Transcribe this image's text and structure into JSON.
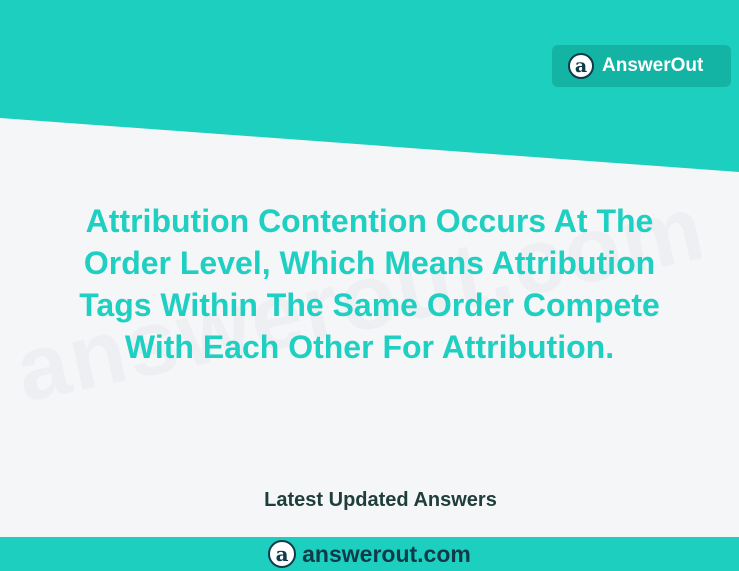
{
  "brand": {
    "logo_glyph": "a",
    "name": "AnswerOut"
  },
  "question": {
    "lines": [
      "Attribution Contention Occurs At The",
      "Order Level, Which Means Attribution",
      "Tags Within The Same Order Compete",
      "With Each Other For Attribution."
    ]
  },
  "footer": {
    "label": "Latest Updated Answers",
    "logo_glyph": "a",
    "site": "answerout.com"
  },
  "watermark": "answerout.com",
  "colors": {
    "teal": "#1dcfbf",
    "badge": "#13b4a4",
    "question_text": "#1fcfc1",
    "footer_label": "#1f3d3a",
    "dark_navy": "#0e3a4a"
  }
}
